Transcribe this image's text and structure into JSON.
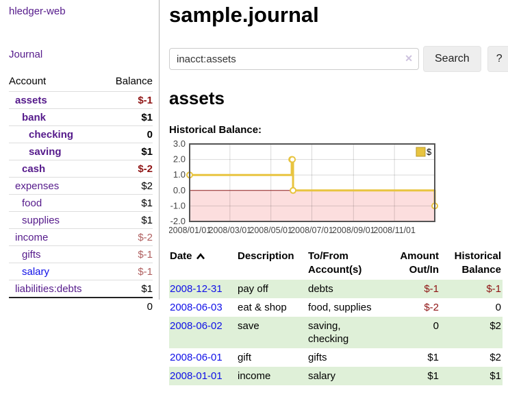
{
  "app": {
    "title": "hledger-web"
  },
  "sidebar": {
    "journal_label": "Journal",
    "accounts_table": {
      "headers": {
        "account": "Account",
        "balance": "Balance"
      },
      "rows": [
        {
          "name": "assets",
          "balance": "$-1",
          "depth": 1,
          "bold": true,
          "balance_style": "neg-strong"
        },
        {
          "name": "bank",
          "balance": "$1",
          "depth": 2,
          "bold": true,
          "balance_style": "normal"
        },
        {
          "name": "checking",
          "balance": "0",
          "depth": 3,
          "bold": true,
          "balance_style": "normal"
        },
        {
          "name": "saving",
          "balance": "$1",
          "depth": 3,
          "bold": true,
          "balance_style": "normal"
        },
        {
          "name": "cash",
          "balance": "$-2",
          "depth": 2,
          "bold": true,
          "balance_style": "neg-strong"
        },
        {
          "name": "expenses",
          "balance": "$2",
          "depth": 1,
          "bold": false,
          "balance_style": "normal"
        },
        {
          "name": "food",
          "balance": "$1",
          "depth": 2,
          "bold": false,
          "balance_style": "normal"
        },
        {
          "name": "supplies",
          "balance": "$1",
          "depth": 2,
          "bold": false,
          "balance_style": "normal"
        },
        {
          "name": "income",
          "balance": "$-2",
          "depth": 1,
          "bold": false,
          "balance_style": "neg-soft"
        },
        {
          "name": "gifts",
          "balance": "$-1",
          "depth": 2,
          "bold": false,
          "balance_style": "neg-soft"
        },
        {
          "name": "salary",
          "balance": "$-1",
          "depth": 2,
          "bold": false,
          "balance_style": "neg-soft",
          "link_style": "blue"
        },
        {
          "name": "liabilities:debts",
          "balance": "$1",
          "depth": 1,
          "bold": false,
          "balance_style": "normal"
        }
      ],
      "total": "0"
    }
  },
  "main": {
    "title": "sample.journal",
    "search": {
      "value": "inacct:assets",
      "clear_icon": "✕",
      "button_label": "Search",
      "help_label": "?"
    },
    "account_heading": "assets",
    "chart_label": "Historical Balance:"
  },
  "chart_data": {
    "type": "line",
    "title": "Historical Balance",
    "step": true,
    "grid": true,
    "x_range": [
      "2008/01/01",
      "2008/12/31"
    ],
    "ylim": [
      -2,
      3
    ],
    "yticks": [
      "3.0",
      "2.0",
      "1.0",
      "0.0",
      "-1.0",
      "-2.0"
    ],
    "xticks": [
      "2008/01/01",
      "2008/03/01",
      "2008/05/01",
      "2008/07/01",
      "2008/09/01",
      "2008/11/01"
    ],
    "series": [
      {
        "name": "$",
        "color": "#e8c440",
        "points": [
          [
            "2008-01-01",
            1
          ],
          [
            "2008-06-01",
            2
          ],
          [
            "2008-06-02",
            2
          ],
          [
            "2008-06-03",
            0
          ],
          [
            "2008-12-31",
            -1
          ]
        ]
      }
    ],
    "legend_position": "top-right",
    "colors": {
      "negative_fill": "#fcdede",
      "zero_line": "#8b1a1a",
      "frame": "#545454",
      "legend_border": "#b9982a",
      "axis_text": "#444444"
    }
  },
  "register": {
    "headers": {
      "date": "Date",
      "description": "Description",
      "accounts": "To/From Account(s)",
      "amount": "Amount Out/In",
      "balance": "Historical Balance"
    },
    "sort_icon": "chevron-up",
    "rows": [
      {
        "date": "2008-12-31",
        "description": "pay off",
        "accounts": "debts",
        "amount": "$-1",
        "balance": "$-1"
      },
      {
        "date": "2008-06-03",
        "description": "eat & shop",
        "accounts": "food, supplies",
        "amount": "$-2",
        "balance": "0"
      },
      {
        "date": "2008-06-02",
        "description": "save",
        "accounts": "saving, checking",
        "amount": "0",
        "balance": "$2"
      },
      {
        "date": "2008-06-01",
        "description": "gift",
        "accounts": "gifts",
        "amount": "$1",
        "balance": "$2"
      },
      {
        "date": "2008-01-01",
        "description": "income",
        "accounts": "salary",
        "amount": "$1",
        "balance": "$1"
      }
    ]
  },
  "colors": {
    "link_visited": "#551a8b",
    "link": "#0f0fe8",
    "negative_strong": "#8f1414",
    "negative_soft": "#b06060",
    "row_highlight": "#dff0d8",
    "accent_gold": "#e8c440"
  }
}
